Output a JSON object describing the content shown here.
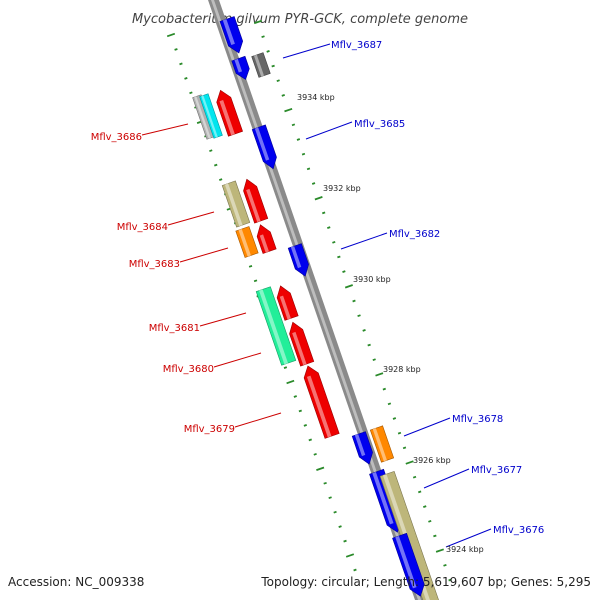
{
  "title": "Mycobacterium gilvum PYR-GCK, complete genome",
  "accession_text": "Accession: NC_009338",
  "summary_text": "Topology: circular; Length: 5,619,607 bp; Genes: 5,295",
  "colors": {
    "backbone": "#8a8a8a",
    "tick": "#2a8a2a",
    "forward_label": "#0000cc",
    "reverse_label": "#cc0000",
    "blue_gene": "#0000ee",
    "red_gene": "#ee0000",
    "orange_gene": "#ff8800",
    "khaki_gene": "#bdb67a",
    "cyan_gene": "#00e5ee",
    "spring_green_gene": "#22ee99",
    "grey_gene": "#b0b0b0",
    "dark_grey_gene": "#666666"
  },
  "kbp_marks": [
    "3934 kbp",
    "3932 kbp",
    "3930 kbp",
    "3928 kbp",
    "3926 kbp",
    "3924 kbp"
  ],
  "gene_labels": [
    {
      "text": "Mflv_3687",
      "strand": "forward"
    },
    {
      "text": "Mflv_3686",
      "strand": "reverse"
    },
    {
      "text": "Mflv_3685",
      "strand": "forward"
    },
    {
      "text": "Mflv_3684",
      "strand": "reverse"
    },
    {
      "text": "Mflv_3683",
      "strand": "reverse"
    },
    {
      "text": "Mflv_3682",
      "strand": "forward"
    },
    {
      "text": "Mflv_3681",
      "strand": "reverse"
    },
    {
      "text": "Mflv_3680",
      "strand": "reverse"
    },
    {
      "text": "Mflv_3679",
      "strand": "reverse"
    },
    {
      "text": "Mflv_3678",
      "strand": "forward"
    },
    {
      "text": "Mflv_3677",
      "strand": "forward"
    },
    {
      "text": "Mflv_3676",
      "strand": "forward"
    }
  ]
}
